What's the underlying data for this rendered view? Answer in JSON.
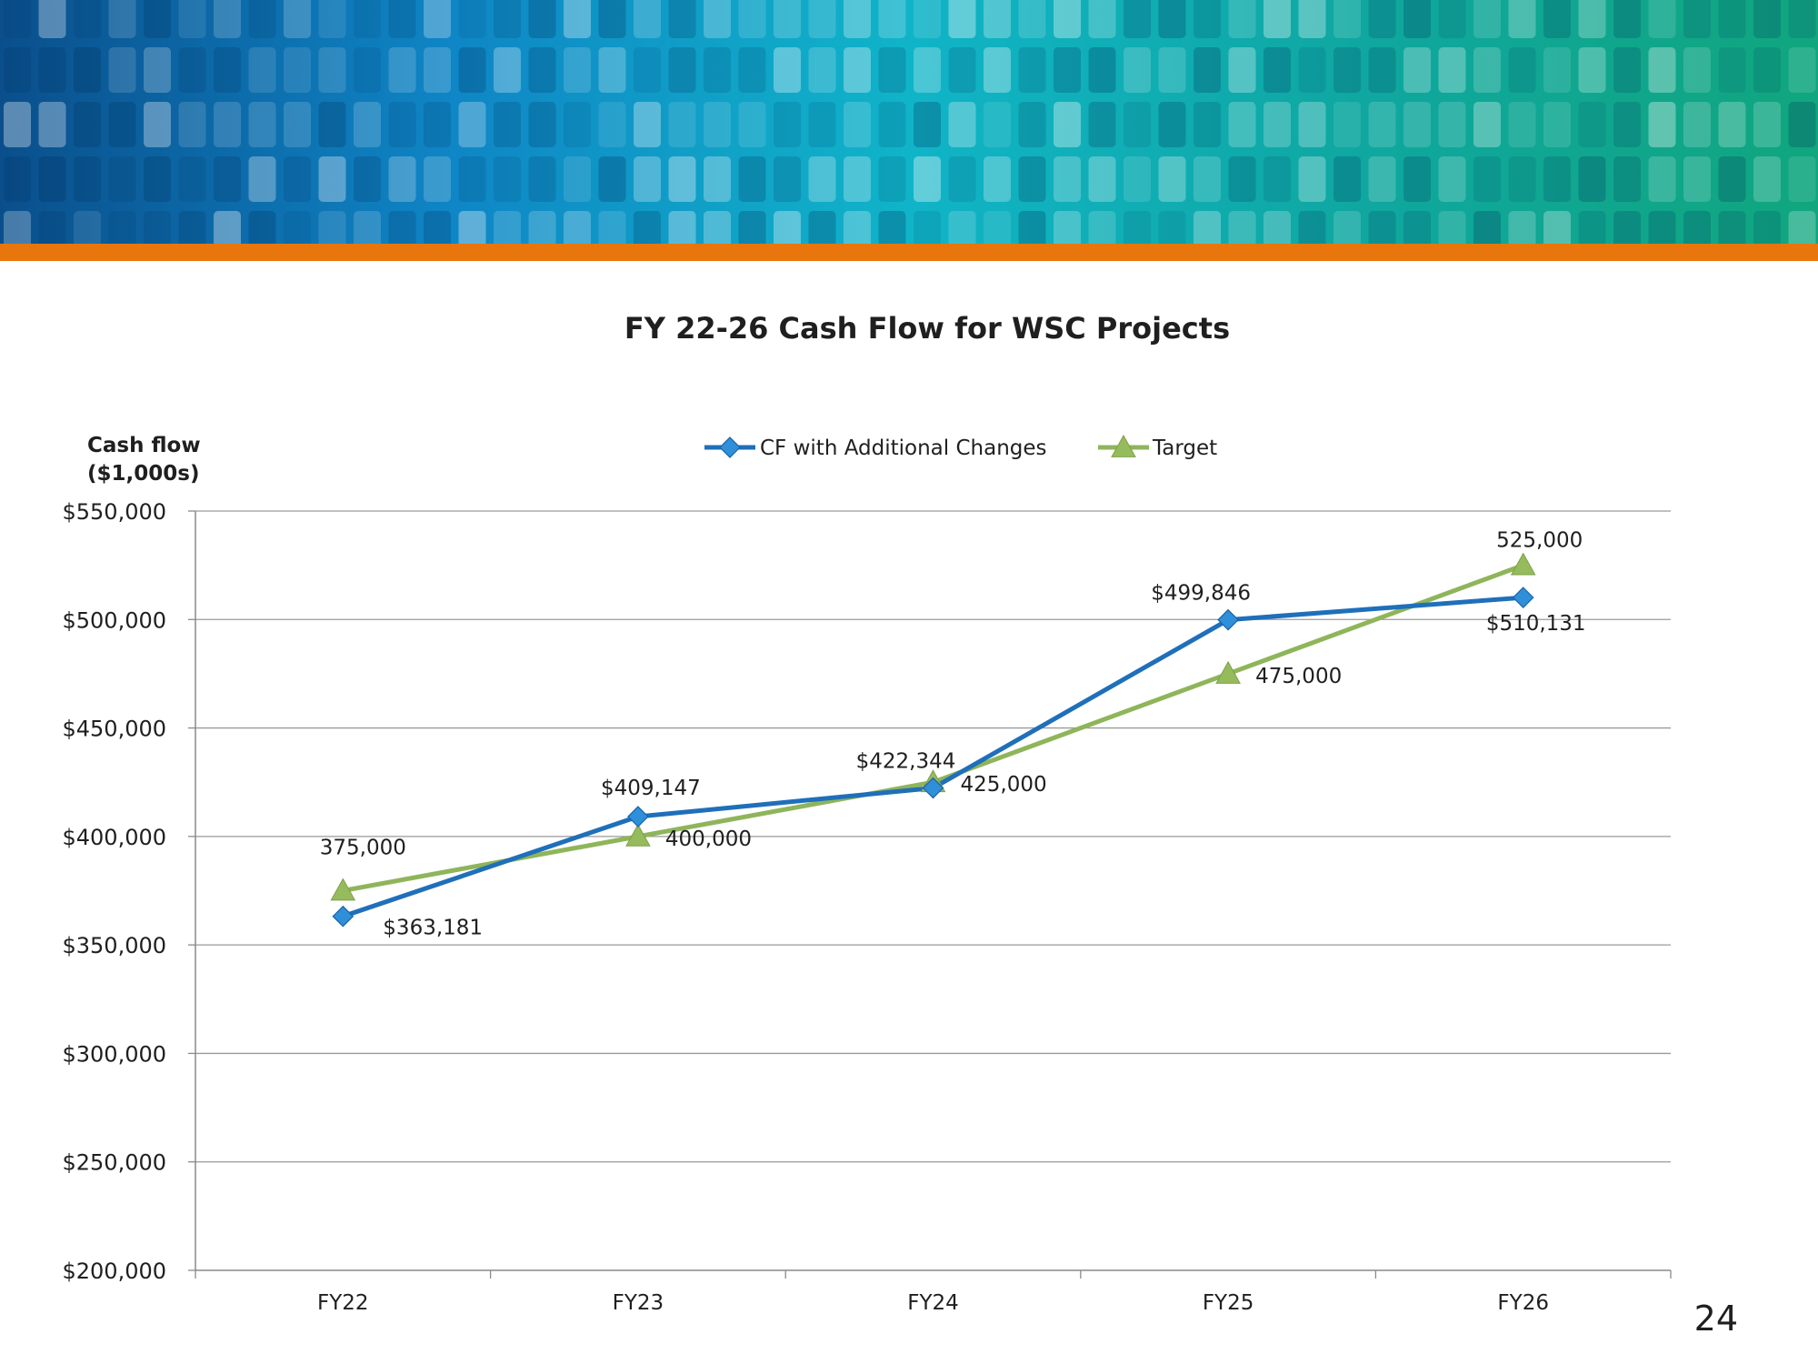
{
  "slide": {
    "page_number": "24",
    "banner_colors": [
      "#0a4f8c",
      "#0f86c6",
      "#10b4c8",
      "#0fa7a0",
      "#10a67e"
    ],
    "accent_stripe_color": "#e8760c"
  },
  "chart_data": {
    "type": "line",
    "title": "FY 22-26 Cash Flow for WSC Projects",
    "ylabel_lines": [
      "Cash flow",
      "($1,000s)"
    ],
    "xlabel": "",
    "categories": [
      "FY22",
      "FY23",
      "FY24",
      "FY25",
      "FY26"
    ],
    "ylim": [
      200000,
      550000
    ],
    "yticks": [
      200000,
      250000,
      300000,
      350000,
      400000,
      450000,
      500000,
      550000
    ],
    "ytick_labels": [
      "$200,000",
      "$250,000",
      "$300,000",
      "$350,000",
      "$400,000",
      "$450,000",
      "$500,000",
      "$550,000"
    ],
    "grid": true,
    "legend_position": "top-center",
    "series": [
      {
        "name": "CF with Additional Changes",
        "values": [
          363181,
          409147,
          422344,
          499846,
          510131
        ],
        "labels": [
          "$363,181",
          "$409,147",
          "$422,344",
          "$499,846",
          "$510,131"
        ],
        "color": "#1f6fba",
        "marker": "diamond",
        "marker_color": "#2f8fd8"
      },
      {
        "name": "Target",
        "values": [
          375000,
          400000,
          425000,
          475000,
          525000
        ],
        "labels": [
          "375,000",
          "400,000",
          "425,000",
          "475,000",
          "525,000"
        ],
        "color": "#8fb55a",
        "marker": "triangle",
        "marker_color": "#95bb5c"
      }
    ]
  }
}
